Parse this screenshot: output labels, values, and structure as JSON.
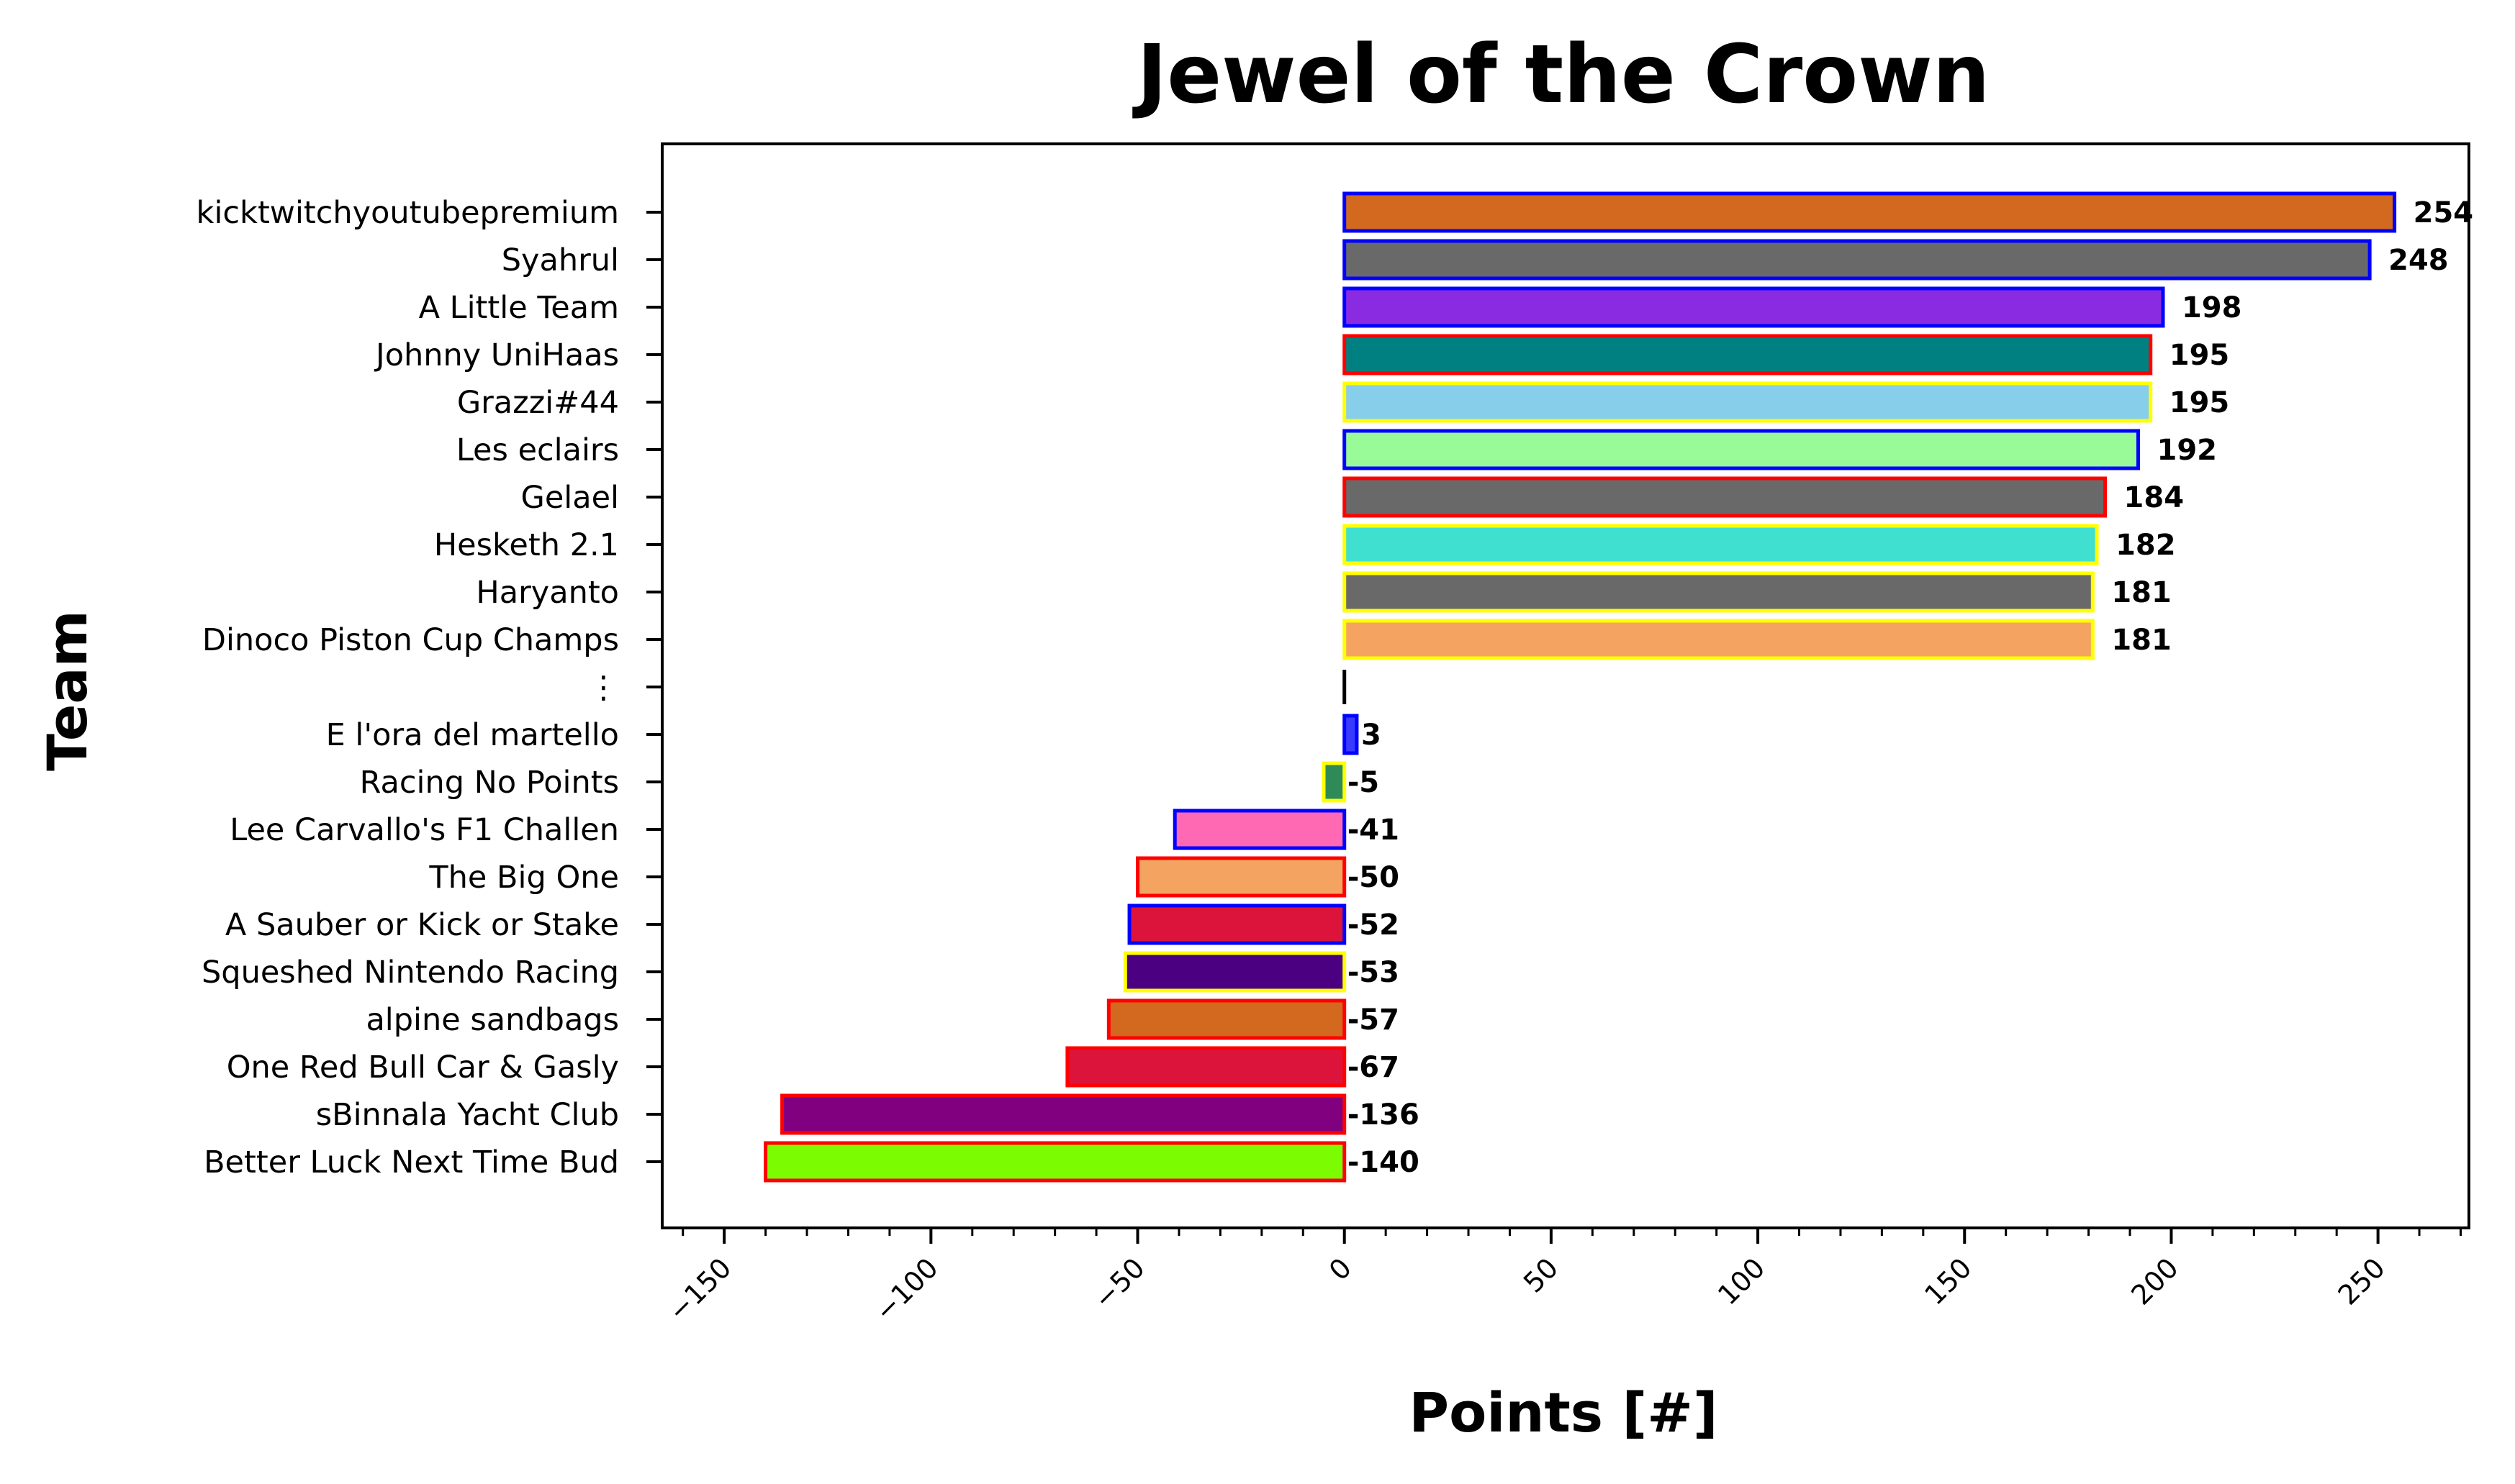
{
  "chart_data": {
    "type": "bar",
    "orientation": "horizontal",
    "title": "Jewel of the Crown",
    "xlabel": "Points [#]",
    "ylabel": "Team",
    "xlim": [
      -165,
      272
    ],
    "xticks": [
      -150,
      -100,
      -50,
      0,
      50,
      100,
      150,
      200,
      250
    ],
    "xtick_labels": [
      "−150",
      "−100",
      "−50",
      "0",
      "50",
      "100",
      "150",
      "200",
      "250"
    ],
    "grid": false,
    "legend": "none",
    "categories": [
      "kicktwitchyoutubepremium",
      "Syahrul",
      "A Little Team",
      "Johnny UniHaas",
      "Grazzi#44",
      "Les eclairs",
      "Gelael",
      "Hesketh 2.1",
      "Haryanto",
      "Dinoco Piston Cup Champs",
      "⋮",
      "E l'ora del martello",
      "Racing No Points",
      "Lee Carvallo's F1 Challen",
      "The Big One",
      "A Sauber or Kick or Stake",
      "Squeshed Nintendo Racing",
      "alpine sandbags",
      "One Red Bull Car & Gasly",
      "sBinnala Yacht Club",
      "Better Luck Next Time Bud"
    ],
    "values": [
      254,
      248,
      198,
      195,
      195,
      192,
      184,
      182,
      181,
      181,
      null,
      3,
      -5,
      -41,
      -50,
      -52,
      -53,
      -57,
      -67,
      -136,
      -140
    ],
    "value_labels": [
      "254",
      "248",
      "198",
      "195",
      "195",
      "192",
      "184",
      "182",
      "181",
      "181",
      "",
      "3",
      "-5",
      "-41",
      "-50",
      "-52",
      "-53",
      "-57",
      "-67",
      "-136",
      "-140"
    ],
    "bar_colors": [
      "#d2691e",
      "#696969",
      "#8a2be2",
      "#008080",
      "#87ceeb",
      "#98fb98",
      "#696969",
      "#40e0d0",
      "#696969",
      "#f4a460",
      null,
      "#3a3aff",
      "#2e8b57",
      "#ff69b4",
      "#f4a460",
      "#dc143c",
      "#4b0082",
      "#d2691e",
      "#dc143c",
      "#800080",
      "#7cfc00"
    ],
    "edge_colors": [
      "#0000ff",
      "#0000ff",
      "#0000ff",
      "#ff0000",
      "#ffff00",
      "#0000ff",
      "#ff0000",
      "#ffff00",
      "#ffff00",
      "#ffff00",
      null,
      "#0000ff",
      "#ffff00",
      "#0000ff",
      "#ff0000",
      "#0000ff",
      "#ffff00",
      "#ff0000",
      "#ff0000",
      "#ff0000",
      "#ff0000"
    ]
  }
}
